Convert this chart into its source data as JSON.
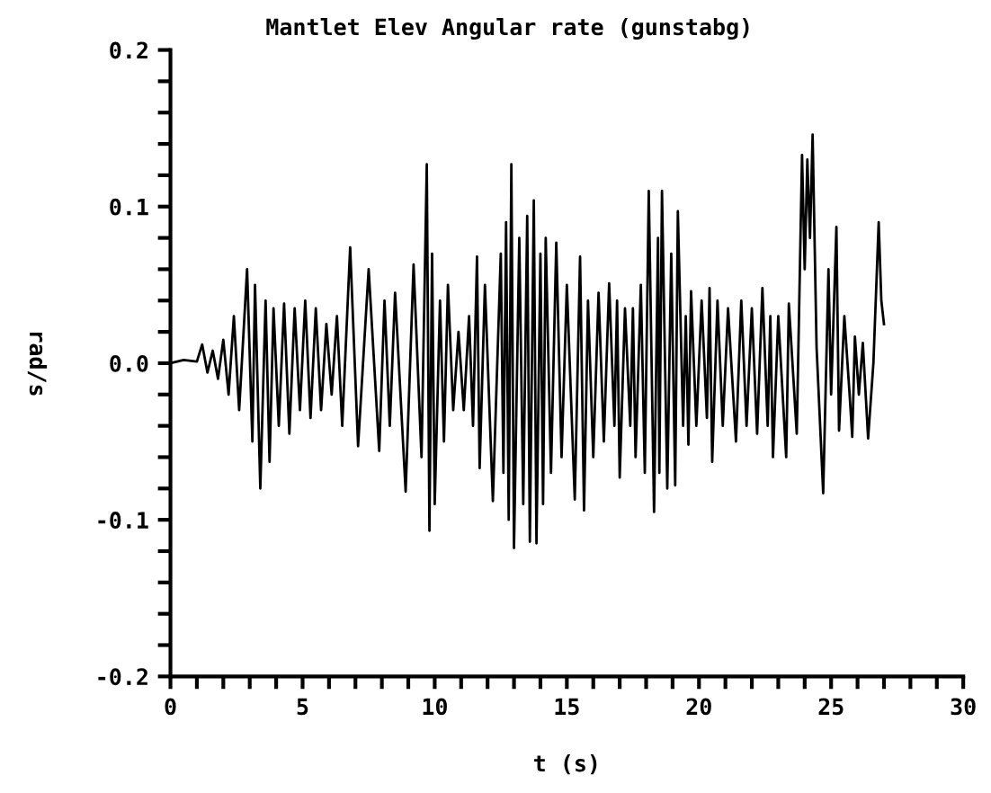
{
  "chart_data": {
    "type": "line",
    "title": "Mantlet Elev Angular rate (gunstabg)",
    "xlabel": "t (s)",
    "ylabel": "rad/s",
    "xlim": [
      0,
      30
    ],
    "ylim": [
      -0.2,
      0.2
    ],
    "xticks": [
      0,
      {
        "value": 1,
        "label": null
      },
      {
        "value": 2,
        "label": null
      },
      {
        "value": 3,
        "label": null
      },
      {
        "value": 4,
        "label": null
      },
      5,
      {
        "value": 6,
        "label": null
      },
      {
        "value": 7,
        "label": null
      },
      {
        "value": 8,
        "label": null
      },
      {
        "value": 9,
        "label": null
      },
      10,
      {
        "value": 11,
        "label": null
      },
      {
        "value": 12,
        "label": null
      },
      {
        "value": 13,
        "label": null
      },
      {
        "value": 14,
        "label": null
      },
      15,
      {
        "value": 16,
        "label": null
      },
      {
        "value": 17,
        "label": null
      },
      {
        "value": 18,
        "label": null
      },
      {
        "value": 19,
        "label": null
      },
      20,
      {
        "value": 21,
        "label": null
      },
      {
        "value": 22,
        "label": null
      },
      {
        "value": 23,
        "label": null
      },
      {
        "value": 24,
        "label": null
      },
      25,
      {
        "value": 26,
        "label": null
      },
      {
        "value": 27,
        "label": null
      },
      {
        "value": 28,
        "label": null
      },
      {
        "value": 29,
        "label": null
      },
      30
    ],
    "yticks": [
      {
        "value": -0.2,
        "label": "-0.2"
      },
      {
        "value": -0.18,
        "label": null
      },
      {
        "value": -0.16,
        "label": null
      },
      {
        "value": -0.14,
        "label": null
      },
      {
        "value": -0.12,
        "label": null
      },
      {
        "value": -0.1,
        "label": "-0.1"
      },
      {
        "value": -0.08,
        "label": null
      },
      {
        "value": -0.06,
        "label": null
      },
      {
        "value": -0.04,
        "label": null
      },
      {
        "value": -0.02,
        "label": null
      },
      {
        "value": 0,
        "label": "0.0"
      },
      {
        "value": 0.02,
        "label": null
      },
      {
        "value": 0.04,
        "label": null
      },
      {
        "value": 0.06,
        "label": null
      },
      {
        "value": 0.08,
        "label": null
      },
      {
        "value": 0.1,
        "label": "0.1"
      },
      {
        "value": 0.12,
        "label": null
      },
      {
        "value": 0.14,
        "label": null
      },
      {
        "value": 0.16,
        "label": null
      },
      {
        "value": 0.18,
        "label": null
      },
      {
        "value": 0.2,
        "label": "0.2"
      }
    ],
    "grid": false,
    "marker": "none",
    "line_style": "solid",
    "series": [
      {
        "color": "#000000",
        "x": [
          0,
          0.5,
          1.0,
          1.2,
          1.4,
          1.6,
          1.8,
          2.0,
          2.2,
          2.4,
          2.6,
          2.9,
          3.1,
          3.2,
          3.4,
          3.6,
          3.75,
          3.9,
          4.1,
          4.3,
          4.5,
          4.7,
          4.9,
          5.1,
          5.3,
          5.5,
          5.7,
          5.9,
          6.1,
          6.3,
          6.5,
          6.8,
          7.1,
          7.5,
          7.9,
          8.1,
          8.3,
          8.5,
          8.9,
          9.2,
          9.5,
          9.7,
          9.8,
          9.9,
          10.0,
          10.2,
          10.35,
          10.5,
          10.7,
          10.9,
          11.1,
          11.3,
          11.45,
          11.6,
          11.7,
          11.9,
          12.2,
          12.5,
          12.6,
          12.7,
          12.8,
          12.9,
          13.0,
          13.2,
          13.35,
          13.5,
          13.6,
          13.75,
          13.85,
          14.0,
          14.1,
          14.2,
          14.4,
          14.6,
          14.8,
          15.0,
          15.3,
          15.5,
          15.65,
          15.8,
          16.0,
          16.2,
          16.4,
          16.6,
          16.8,
          16.9,
          17.0,
          17.2,
          17.4,
          17.5,
          17.6,
          17.8,
          17.95,
          18.1,
          18.3,
          18.45,
          18.5,
          18.6,
          18.8,
          18.95,
          19.1,
          19.2,
          19.4,
          19.5,
          19.6,
          19.7,
          19.9,
          20.1,
          20.3,
          20.4,
          20.5,
          20.7,
          20.9,
          21.1,
          21.4,
          21.6,
          21.8,
          22.0,
          22.2,
          22.4,
          22.6,
          22.7,
          22.8,
          23.0,
          23.3,
          23.4,
          23.7,
          23.9,
          24.0,
          24.1,
          24.2,
          24.3,
          24.45,
          24.7,
          24.9,
          25.0,
          25.2,
          25.3,
          25.5,
          25.7,
          25.8,
          25.9,
          26.05,
          26.2,
          26.4,
          26.6,
          26.8,
          26.9,
          27.0
        ],
        "values": [
          0,
          0.002,
          0.001,
          0.012,
          -0.006,
          0.008,
          -0.01,
          0.015,
          -0.02,
          0.03,
          -0.03,
          0.06,
          -0.05,
          0.05,
          -0.08,
          0.04,
          -0.063,
          0.035,
          -0.04,
          0.038,
          -0.045,
          0.035,
          -0.03,
          0.04,
          -0.035,
          0.035,
          -0.03,
          0.025,
          -0.02,
          0.03,
          -0.04,
          0.074,
          -0.053,
          0.06,
          -0.056,
          0.04,
          -0.04,
          0.045,
          -0.082,
          0.063,
          -0.06,
          0.127,
          -0.107,
          0.07,
          -0.09,
          0.04,
          -0.05,
          0.05,
          -0.03,
          0.02,
          -0.03,
          0.03,
          -0.04,
          0.068,
          -0.067,
          0.05,
          -0.088,
          0.07,
          -0.07,
          0.09,
          -0.1,
          0.127,
          -0.118,
          0.08,
          -0.09,
          0.094,
          -0.114,
          0.104,
          -0.115,
          0.07,
          -0.09,
          0.08,
          -0.07,
          0.077,
          -0.06,
          0.05,
          -0.087,
          0.068,
          -0.094,
          0.04,
          -0.06,
          0.045,
          -0.05,
          0.051,
          -0.04,
          0.04,
          -0.073,
          0.035,
          -0.04,
          0.035,
          -0.06,
          0.05,
          -0.07,
          0.11,
          -0.095,
          0.08,
          -0.07,
          0.11,
          -0.08,
          0.07,
          -0.078,
          0.097,
          -0.04,
          0.03,
          -0.052,
          0.046,
          -0.04,
          0.04,
          -0.035,
          0.048,
          -0.063,
          0.04,
          -0.04,
          0.035,
          -0.05,
          0.04,
          -0.04,
          0.035,
          -0.045,
          0.048,
          -0.04,
          0.03,
          -0.06,
          0.03,
          -0.06,
          0.038,
          -0.045,
          0.133,
          0.06,
          0.13,
          0.08,
          0.146,
          0.01,
          -0.083,
          0.06,
          -0.02,
          0.087,
          -0.043,
          0.03,
          -0.02,
          -0.047,
          0.017,
          -0.02,
          0.013,
          -0.048,
          0.0,
          0.09,
          0.04,
          0.025
        ]
      }
    ]
  }
}
